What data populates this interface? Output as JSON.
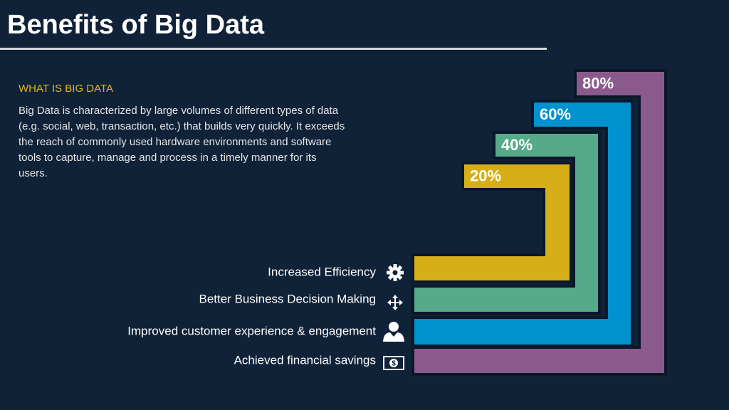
{
  "header": {
    "title": "Benefits of Big Data"
  },
  "intro": {
    "heading": "WHAT IS BIG DATA",
    "text": "Big Data is characterized by large volumes of different types of data (e.g. social, web, transaction, etc.) that builds very quickly. It exceeds the reach of commonly used hardware environments and software tools to capture, manage and process in a timely manner for its users."
  },
  "steps": [
    {
      "label": "Increased Efficiency",
      "percent": "20%"
    },
    {
      "label": "Better Business Decision Making",
      "percent": "40%"
    },
    {
      "label": "Improved customer experience & engagement",
      "percent": "60%"
    },
    {
      "label": "Achieved financial savings",
      "percent": "80%"
    }
  ]
}
